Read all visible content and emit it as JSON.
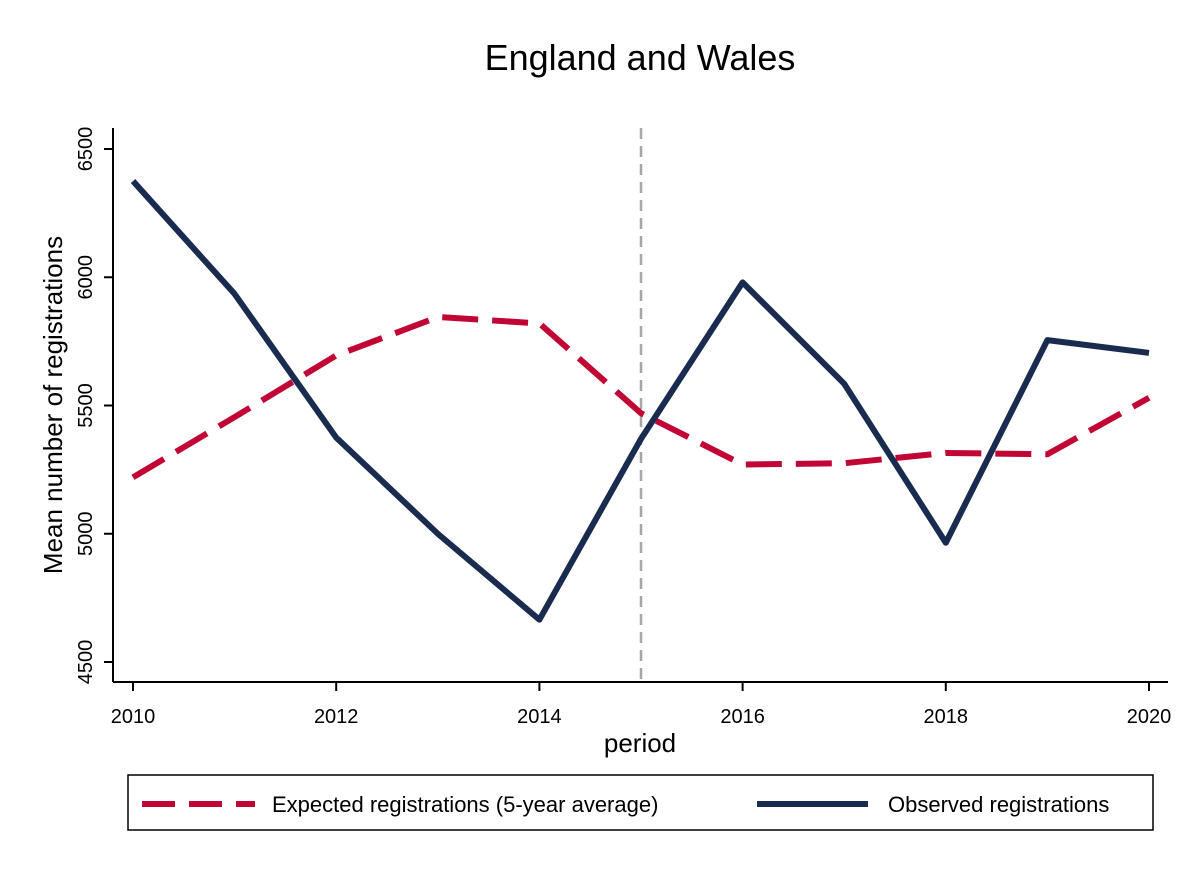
{
  "chart_data": {
    "type": "line",
    "title": "England and Wales",
    "xlabel": "period",
    "ylabel": "Mean number of registrations",
    "xlim": [
      2010,
      2020
    ],
    "ylim": [
      4500,
      6500
    ],
    "x_ticks": [
      2010,
      2012,
      2014,
      2016,
      2018,
      2020
    ],
    "y_ticks": [
      4500,
      5000,
      5500,
      6000,
      6500
    ],
    "grid": false,
    "reference_line": {
      "x": 2015,
      "style": "dashed",
      "color": "#a6a6a6"
    },
    "legend_position": "bottom",
    "x": [
      2010,
      2011,
      2012,
      2013,
      2014,
      2015,
      2016,
      2017,
      2018,
      2019,
      2020
    ],
    "series": [
      {
        "name": "Expected registrations (5-year average)",
        "style": "dashed",
        "color": "#c10534",
        "values": [
          5220,
          5455,
          5695,
          5845,
          5820,
          5470,
          5270,
          5275,
          5315,
          5310,
          5530
        ]
      },
      {
        "name": "Observed registrations",
        "style": "solid",
        "color": "#1a2b50",
        "values": [
          6375,
          5935,
          5375,
          5000,
          4665,
          5370,
          5980,
          5585,
          4965,
          5755,
          5705
        ]
      }
    ]
  }
}
